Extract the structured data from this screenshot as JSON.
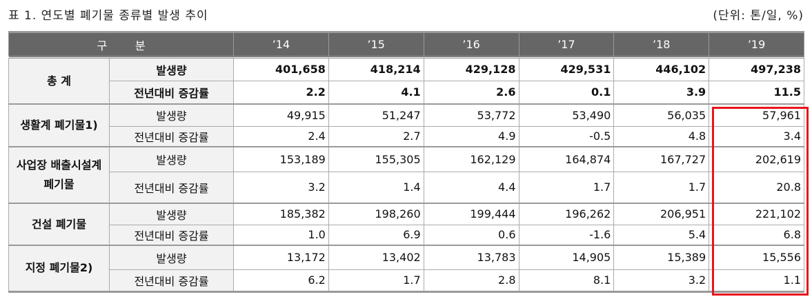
{
  "title": "표 1. 연도별 폐기물 종류별 발생 추이",
  "unit": "(단위: 톤/일, %)",
  "header": {
    "category": "구        분",
    "years": [
      "’14",
      "’15",
      "’16",
      "’17",
      "’18",
      "’19"
    ]
  },
  "groups": [
    {
      "name": "총 계",
      "bold": true,
      "rows": [
        {
          "label": "발생량",
          "values": [
            "401,658",
            "418,214",
            "429,128",
            "429,531",
            "446,102",
            "497,238"
          ]
        },
        {
          "label": "전년대비 증감률",
          "values": [
            "2.2",
            "4.1",
            "2.6",
            "0.1",
            "3.9",
            "11.5"
          ]
        }
      ]
    },
    {
      "name": "생활계 폐기물1)",
      "rows": [
        {
          "label": "발생량",
          "values": [
            "49,915",
            "51,247",
            "53,772",
            "53,490",
            "56,035",
            "57,961"
          ]
        },
        {
          "label": "전년대비 증감률",
          "values": [
            "2.4",
            "2.7",
            "4.9",
            "-0.5",
            "4.8",
            "3.4"
          ]
        }
      ]
    },
    {
      "name": "사업장 배출시설계 폐기물",
      "rows": [
        {
          "label": "발생량",
          "values": [
            "153,189",
            "155,305",
            "162,129",
            "164,874",
            "167,727",
            "202,619"
          ]
        },
        {
          "label": "전년대비 증감률",
          "values": [
            "3.2",
            "1.4",
            "4.4",
            "1.7",
            "1.7",
            "20.8"
          ]
        }
      ]
    },
    {
      "name": "건설 폐기물",
      "rows": [
        {
          "label": "발생량",
          "values": [
            "185,382",
            "198,260",
            "199,444",
            "196,262",
            "206,951",
            "221,102"
          ]
        },
        {
          "label": "전년대비 증감률",
          "values": [
            "1.0",
            "6.9",
            "0.6",
            "-1.6",
            "5.4",
            "6.8"
          ]
        }
      ]
    },
    {
      "name": "지정 폐기물2)",
      "rows": [
        {
          "label": "발생량",
          "values": [
            "13,172",
            "13,402",
            "13,783",
            "14,905",
            "15,389",
            "15,556"
          ]
        },
        {
          "label": "전년대비 증감률",
          "values": [
            "6.2",
            "1.7",
            "2.8",
            "8.1",
            "3.2",
            "1.1"
          ]
        }
      ]
    }
  ],
  "highlight_color": "#e8141c"
}
